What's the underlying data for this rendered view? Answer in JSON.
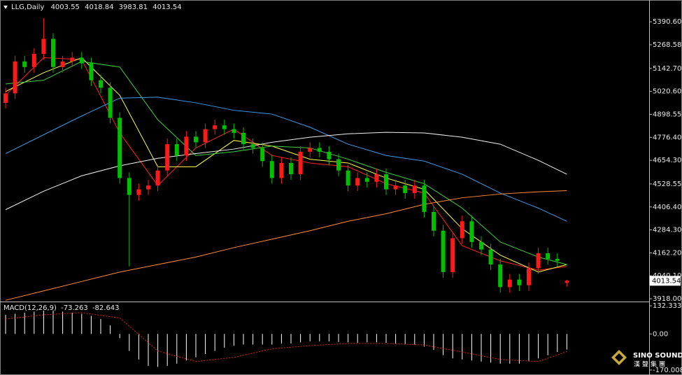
{
  "chart_data": [
    {
      "type": "candlestick",
      "title": "LLG,Daily",
      "up_color": "#ff1a1a",
      "down_color": "#00c000",
      "open": [
        4960,
        5010,
        5180,
        5150,
        5220,
        5300,
        5150,
        5180,
        5200,
        5170,
        5080,
        5040,
        4880,
        4560,
        4470,
        4500,
        4520,
        4600,
        4740,
        4680,
        4780,
        4750,
        4820,
        4840,
        4820,
        4800,
        4740,
        4720,
        4650,
        4560,
        4640,
        4580,
        4700,
        4720,
        4700,
        4660,
        4600,
        4520,
        4560,
        4540,
        4580,
        4500,
        4520,
        4480,
        4520,
        4380,
        4280,
        4060,
        4240,
        4330,
        4220,
        4180,
        4100,
        3980,
        4020,
        3990,
        4080,
        4160,
        4130,
        4003.55
      ],
      "high": [
        5040,
        5210,
        5210,
        5250,
        5410,
        5330,
        5210,
        5230,
        5230,
        5200,
        5110,
        5070,
        4910,
        4590,
        4530,
        4550,
        4630,
        4770,
        4770,
        4810,
        4810,
        4850,
        4870,
        4870,
        4850,
        4830,
        4770,
        4750,
        4680,
        4670,
        4670,
        4730,
        4750,
        4750,
        4730,
        4690,
        4630,
        4590,
        4590,
        4610,
        4610,
        4550,
        4550,
        4550,
        4550,
        4410,
        4310,
        4270,
        4360,
        4360,
        4250,
        4210,
        4130,
        4050,
        4050,
        4110,
        4190,
        4190,
        4160,
        4018.84
      ],
      "low": [
        4930,
        4980,
        5120,
        5120,
        5190,
        5120,
        5120,
        5150,
        5140,
        5050,
        5010,
        4850,
        4530,
        4090,
        4440,
        4470,
        4490,
        4570,
        4650,
        4650,
        4720,
        4720,
        4790,
        4790,
        4770,
        4710,
        4690,
        4620,
        4530,
        4530,
        4550,
        4550,
        4670,
        4670,
        4630,
        4570,
        4490,
        4490,
        4510,
        4510,
        4470,
        4470,
        4450,
        4450,
        4350,
        4250,
        4030,
        4030,
        4210,
        4190,
        4150,
        4070,
        3950,
        3950,
        3960,
        3960,
        4050,
        4100,
        4090,
        3983.81
      ],
      "close": [
        5010,
        5180,
        5150,
        5220,
        5300,
        5150,
        5180,
        5200,
        5170,
        5080,
        5040,
        4880,
        4560,
        4470,
        4500,
        4520,
        4600,
        4740,
        4680,
        4780,
        4750,
        4820,
        4840,
        4820,
        4800,
        4740,
        4720,
        4650,
        4560,
        4640,
        4580,
        4700,
        4720,
        4700,
        4660,
        4600,
        4520,
        4560,
        4540,
        4580,
        4500,
        4520,
        4480,
        4520,
        4380,
        4280,
        4060,
        4240,
        4330,
        4220,
        4180,
        4100,
        3980,
        4020,
        3990,
        4080,
        4160,
        4130,
        4120,
        4013.54
      ],
      "moving_averages": [
        {
          "color": "#ff2020",
          "x": [
            0,
            4,
            8,
            12,
            16,
            20,
            24,
            28,
            32,
            36,
            40,
            44,
            48,
            52,
            56,
            59
          ],
          "values": [
            5000,
            5200,
            5190,
            4800,
            4520,
            4720,
            4820,
            4680,
            4640,
            4620,
            4530,
            4480,
            4200,
            4120,
            4070,
            4090
          ]
        },
        {
          "color": "#ffff40",
          "x": [
            0,
            4,
            8,
            12,
            16,
            20,
            24,
            28,
            32,
            36,
            40,
            44,
            48,
            52,
            56,
            59
          ],
          "values": [
            5020,
            5120,
            5200,
            5000,
            4620,
            4620,
            4760,
            4730,
            4660,
            4640,
            4560,
            4500,
            4290,
            4150,
            4060,
            4100
          ]
        },
        {
          "color": "#40d040",
          "x": [
            0,
            4,
            8,
            12,
            16,
            20,
            24,
            28,
            32,
            36,
            40,
            44,
            48,
            52,
            56,
            59
          ],
          "values": [
            5060,
            5080,
            5180,
            5150,
            4870,
            4680,
            4700,
            4730,
            4720,
            4660,
            4590,
            4530,
            4400,
            4220,
            4140,
            4100
          ]
        },
        {
          "color": "#3c9be8",
          "x": [
            0,
            4,
            8,
            12,
            16,
            20,
            24,
            28,
            32,
            36,
            40,
            44,
            48,
            52,
            56,
            59
          ],
          "values": [
            4690,
            4790,
            4890,
            4985,
            4990,
            4960,
            4920,
            4900,
            4830,
            4740,
            4680,
            4650,
            4580,
            4480,
            4400,
            4330
          ]
        },
        {
          "color": "#f0f0f0",
          "x": [
            0,
            4,
            8,
            12,
            16,
            20,
            24,
            28,
            32,
            36,
            40,
            44,
            48,
            52,
            56,
            59
          ],
          "values": [
            4392,
            4490,
            4572,
            4625,
            4665,
            4690,
            4714,
            4750,
            4777,
            4795,
            4803,
            4800,
            4777,
            4740,
            4654,
            4580
          ]
        },
        {
          "color": "#ff8c3a",
          "x": [
            0,
            4,
            8,
            12,
            16,
            20,
            24,
            28,
            32,
            36,
            40,
            44,
            48,
            52,
            56,
            59
          ],
          "values": [
            3910,
            3960,
            4010,
            4060,
            4100,
            4140,
            4190,
            4235,
            4280,
            4330,
            4370,
            4420,
            4455,
            4475,
            4487,
            4493
          ]
        }
      ],
      "ylim": [
        3907,
        5488
      ],
      "yticks": [
        {
          "value": 5390.6,
          "label": "5390.60"
        },
        5268.58,
        {
          "value": 5142.7,
          "label": "5142.70"
        },
        {
          "value": 5020.6,
          "label": "5020.60"
        },
        4898.55,
        {
          "value": 4776.4,
          "label": "4776.40"
        },
        {
          "value": 4654.3,
          "label": "4654.30"
        },
        4528.55,
        {
          "value": 4406.4,
          "label": "4406.40"
        },
        {
          "value": 4284.3,
          "label": "4284.30"
        },
        {
          "value": 4162.2,
          "label": "4162.20"
        },
        {
          "value": 4040.1,
          "label": "4040.10"
        },
        {
          "value": 3918,
          "label": "3918.00"
        }
      ]
    },
    {
      "type": "macd",
      "title": "MACD(12,26,9)",
      "histogram_color": "#ffffff",
      "values": [
        90,
        95,
        100,
        105,
        110,
        110,
        105,
        100,
        95,
        85,
        70,
        40,
        -20,
        -80,
        -120,
        -150,
        -155,
        -150,
        -140,
        -125,
        -110,
        -95,
        -80,
        -65,
        -55,
        -50,
        -50,
        -50,
        -50,
        -45,
        -45,
        -40,
        -35,
        -35,
        -35,
        -38,
        -40,
        -42,
        -40,
        -40,
        -42,
        -45,
        -48,
        -50,
        -60,
        -75,
        -100,
        -115,
        -120,
        -125,
        -130,
        -135,
        -140,
        -140,
        -140,
        -130,
        -115,
        -100,
        -85,
        -73.263
      ],
      "signal": {
        "color": "#e02020",
        "x": [
          0,
          4,
          8,
          12,
          16,
          20,
          24,
          28,
          32,
          36,
          40,
          44,
          48,
          52,
          56,
          59
        ],
        "values": [
          70,
          90,
          100,
          75,
          -80,
          -130,
          -110,
          -70,
          -55,
          -45,
          -45,
          -52,
          -85,
          -120,
          -130,
          -82.643
        ]
      },
      "ylim": [
        -180,
        149
      ],
      "yticks": [
        132.333,
        {
          "value": 0,
          "label": "0.00"
        },
        -170.008
      ]
    }
  ],
  "logo": {
    "name": "SINO SOUND",
    "subtitle": "漢聲集團"
  }
}
